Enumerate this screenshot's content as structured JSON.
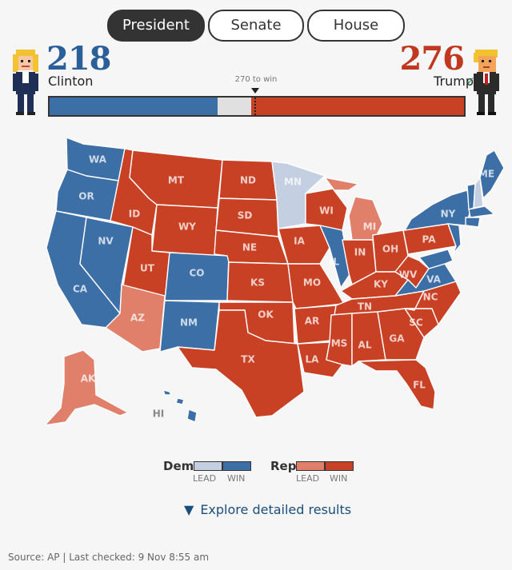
{
  "tabs": [
    {
      "label": "President",
      "active": true
    },
    {
      "label": "Senate",
      "active": false
    },
    {
      "label": "House",
      "active": false
    }
  ],
  "clinton": {
    "votes": "218",
    "name": "Clinton",
    "color": "#2b5f99"
  },
  "trump": {
    "votes": "276",
    "name": "Trump",
    "color": "#c0381f",
    "winner_mark": "✓"
  },
  "win_threshold_label": "270 to win",
  "electoral_bar": {
    "dem_votes": 218,
    "rep_votes": 276,
    "total": 538,
    "threshold": 270
  },
  "map": {
    "states": [
      {
        "abbr": "WA",
        "status": "dem-win"
      },
      {
        "abbr": "OR",
        "status": "dem-win"
      },
      {
        "abbr": "CA",
        "status": "dem-win"
      },
      {
        "abbr": "NV",
        "status": "dem-win"
      },
      {
        "abbr": "ID",
        "status": "rep-win"
      },
      {
        "abbr": "MT",
        "status": "rep-win"
      },
      {
        "abbr": "WY",
        "status": "rep-win"
      },
      {
        "abbr": "UT",
        "status": "rep-win"
      },
      {
        "abbr": "CO",
        "status": "dem-win"
      },
      {
        "abbr": "AZ",
        "status": "rep-lead"
      },
      {
        "abbr": "NM",
        "status": "dem-win"
      },
      {
        "abbr": "ND",
        "status": "rep-win"
      },
      {
        "abbr": "SD",
        "status": "rep-win"
      },
      {
        "abbr": "NE",
        "status": "rep-win"
      },
      {
        "abbr": "KS",
        "status": "rep-win"
      },
      {
        "abbr": "OK",
        "status": "rep-win"
      },
      {
        "abbr": "TX",
        "status": "rep-win"
      },
      {
        "abbr": "MN",
        "status": "dem-lead"
      },
      {
        "abbr": "IA",
        "status": "rep-win"
      },
      {
        "abbr": "MO",
        "status": "rep-win"
      },
      {
        "abbr": "AR",
        "status": "rep-win"
      },
      {
        "abbr": "LA",
        "status": "rep-win"
      },
      {
        "abbr": "WI",
        "status": "rep-win"
      },
      {
        "abbr": "IL",
        "status": "dem-win"
      },
      {
        "abbr": "MI",
        "status": "rep-lead"
      },
      {
        "abbr": "IN",
        "status": "rep-win"
      },
      {
        "abbr": "OH",
        "status": "rep-win"
      },
      {
        "abbr": "KY",
        "status": "rep-win"
      },
      {
        "abbr": "TN",
        "status": "rep-win"
      },
      {
        "abbr": "MS",
        "status": "rep-win"
      },
      {
        "abbr": "AL",
        "status": "rep-win"
      },
      {
        "abbr": "GA",
        "status": "rep-win"
      },
      {
        "abbr": "FL",
        "status": "rep-win"
      },
      {
        "abbr": "SC",
        "status": "rep-win"
      },
      {
        "abbr": "NC",
        "status": "rep-win"
      },
      {
        "abbr": "VA",
        "status": "dem-win"
      },
      {
        "abbr": "WV",
        "status": "rep-win"
      },
      {
        "abbr": "PA",
        "status": "rep-win"
      },
      {
        "abbr": "NY",
        "status": "dem-win"
      },
      {
        "abbr": "ME",
        "status": "dem-win"
      },
      {
        "abbr": "AK",
        "status": "rep-lead"
      },
      {
        "abbr": "HI",
        "status": "dem-win"
      }
    ],
    "colors": {
      "dem-win": "#3d6fa7",
      "dem-lead": "#c4d0e1",
      "rep-win": "#c94125",
      "rep-lead": "#e0806a"
    }
  },
  "legend": {
    "dem_label": "Dem",
    "rep_label": "Rep",
    "lead_label": "LEAD",
    "win_label": "WIN"
  },
  "explore_link": {
    "label": "Explore detailed results",
    "icon": "pointing-hand-icon"
  },
  "source": "Source: AP | Last checked: 9 Nov 8:55 am"
}
